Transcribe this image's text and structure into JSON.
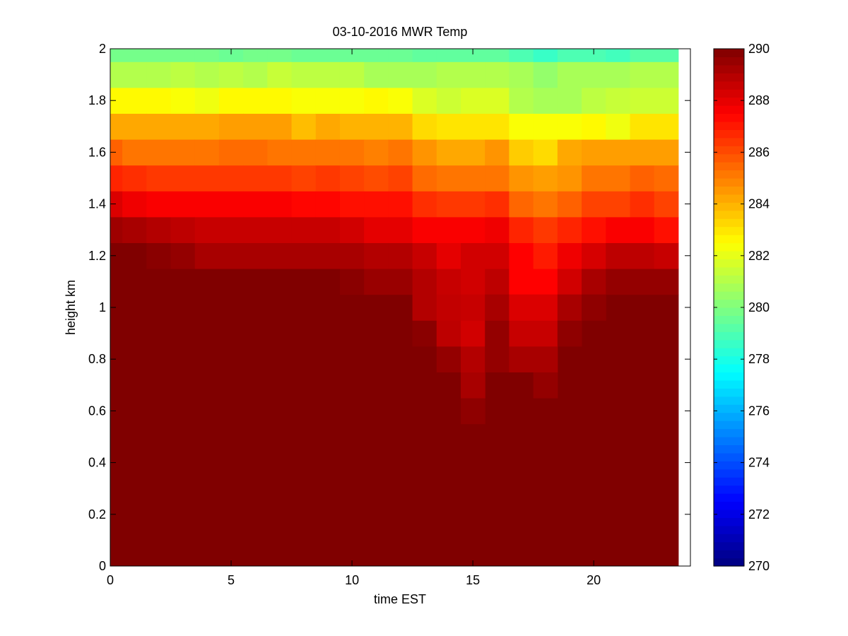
{
  "chart_data": {
    "type": "heatmap",
    "title": "03-10-2016 MWR Temp",
    "xlabel": "time EST",
    "ylabel": "height km",
    "xlim": [
      0,
      24
    ],
    "ylim": [
      0,
      2
    ],
    "xticks": [
      "0",
      "5",
      "10",
      "15",
      "20"
    ],
    "yticks": [
      "0",
      "0.2",
      "0.4",
      "0.6",
      "0.8",
      "1",
      "1.2",
      "1.4",
      "1.6",
      "1.8",
      "2"
    ],
    "colorbar": {
      "colormap": "jet",
      "clim": [
        270,
        290
      ],
      "ticks": [
        "270",
        "272",
        "274",
        "276",
        "278",
        "280",
        "282",
        "284",
        "286",
        "288",
        "290"
      ]
    },
    "x_hours": [
      0,
      1,
      2,
      3,
      4,
      5,
      6,
      7,
      8,
      9,
      10,
      11,
      12,
      13,
      14,
      15,
      16,
      17,
      18,
      19,
      20,
      21,
      22,
      23
    ],
    "height_bins_km": [
      [
        0.0,
        1.05
      ],
      [
        1.05,
        1.15
      ],
      [
        1.15,
        1.25
      ],
      [
        1.25,
        1.35
      ],
      [
        1.35,
        1.45
      ],
      [
        1.45,
        1.55
      ],
      [
        1.55,
        1.65
      ],
      [
        1.65,
        1.75
      ],
      [
        1.75,
        1.85
      ],
      [
        1.85,
        1.95
      ],
      [
        1.95,
        2.0
      ]
    ],
    "low_level_columns": [
      {
        "hour": 13,
        "layers": [
          [
            0.85,
            0.95,
            289.8
          ],
          [
            0.95,
            1.05,
            289.0
          ]
        ]
      },
      {
        "hour": 14,
        "layers": [
          [
            0.75,
            0.85,
            289.6
          ],
          [
            0.85,
            0.95,
            288.8
          ],
          [
            0.95,
            1.05,
            288.7
          ]
        ]
      },
      {
        "hour": 15,
        "layers": [
          [
            0.55,
            0.65,
            289.7
          ],
          [
            0.65,
            0.75,
            289.2
          ],
          [
            0.75,
            0.85,
            289.0
          ],
          [
            0.85,
            0.95,
            288.4
          ],
          [
            0.95,
            1.05,
            288.6
          ]
        ]
      },
      {
        "hour": 16,
        "layers": [
          [
            0.75,
            0.85,
            289.6
          ],
          [
            0.85,
            0.95,
            289.6
          ],
          [
            0.95,
            1.05,
            289.2
          ]
        ]
      },
      {
        "hour": 17,
        "layers": [
          [
            0.75,
            0.85,
            289.2
          ],
          [
            0.85,
            0.95,
            288.6
          ],
          [
            0.95,
            1.05,
            288.2
          ]
        ]
      },
      {
        "hour": 18,
        "layers": [
          [
            0.65,
            0.75,
            289.6
          ],
          [
            0.75,
            0.85,
            289.2
          ],
          [
            0.85,
            0.95,
            288.6
          ],
          [
            0.95,
            1.05,
            288.2
          ]
        ]
      },
      {
        "hour": 19,
        "layers": [
          [
            0.85,
            0.95,
            289.7
          ],
          [
            0.95,
            1.05,
            289.2
          ]
        ]
      },
      {
        "hour": 20,
        "layers": [
          [
            0.95,
            1.05,
            289.7
          ]
        ]
      }
    ],
    "upper_values": [
      [
        290,
        290,
        290,
        290,
        290,
        290,
        290,
        290,
        290,
        290,
        289.8,
        289.5,
        289.5,
        289.0,
        288.6,
        288.4,
        288.8,
        287.5,
        287.5,
        288.4,
        289.2,
        289.6,
        289.6,
        289.6
      ],
      [
        290,
        290,
        289.8,
        289.6,
        289.2,
        289.2,
        289.2,
        289.2,
        289.2,
        289.2,
        289.2,
        289.0,
        289.0,
        288.6,
        288.0,
        288.4,
        288.4,
        287.5,
        287.0,
        287.8,
        288.3,
        288.8,
        288.8,
        288.6
      ],
      [
        289.4,
        289.2,
        289.0,
        288.8,
        288.6,
        288.6,
        288.6,
        288.6,
        288.6,
        288.6,
        288.4,
        288.0,
        288.0,
        287.6,
        287.6,
        287.6,
        287.8,
        286.8,
        286.4,
        286.8,
        287.2,
        287.6,
        287.6,
        287.2
      ],
      [
        288.2,
        287.8,
        287.6,
        287.6,
        287.6,
        287.6,
        287.6,
        287.6,
        287.4,
        287.4,
        287.2,
        287.2,
        287.2,
        286.6,
        286.4,
        286.4,
        286.6,
        285.5,
        285.2,
        285.6,
        286.2,
        286.2,
        286.6,
        286.2
      ],
      [
        286.8,
        286.6,
        286.4,
        286.4,
        286.4,
        286.4,
        286.4,
        286.4,
        286.2,
        286.4,
        286.2,
        286.0,
        286.2,
        285.4,
        285.2,
        285.2,
        285.2,
        284.6,
        284.4,
        284.6,
        285.2,
        285.2,
        285.6,
        285.4
      ],
      [
        285.6,
        285.2,
        285.2,
        285.2,
        285.2,
        285.4,
        285.4,
        285.2,
        285.2,
        285.2,
        285.2,
        285.0,
        285.2,
        284.6,
        284.2,
        284.2,
        284.6,
        283.5,
        283.2,
        284.2,
        284.4,
        284.4,
        284.4,
        284.4
      ],
      [
        284.2,
        284.2,
        284.2,
        284.2,
        284.2,
        284.4,
        284.4,
        284.4,
        283.8,
        284.2,
        284.0,
        284.0,
        284.0,
        283.2,
        283.0,
        283.0,
        283.0,
        282.4,
        282.4,
        282.4,
        282.6,
        282.2,
        283.0,
        283.0
      ],
      [
        282.6,
        282.6,
        282.6,
        282.4,
        282.2,
        282.6,
        282.6,
        282.6,
        282.4,
        282.4,
        282.4,
        282.6,
        282.4,
        281.8,
        281.5,
        281.8,
        281.8,
        281.0,
        280.8,
        280.8,
        281.2,
        281.4,
        281.5,
        281.5
      ],
      [
        281.0,
        281.0,
        281.0,
        281.2,
        281.0,
        281.2,
        281.0,
        281.4,
        281.2,
        281.2,
        281.2,
        280.8,
        280.8,
        280.8,
        281.0,
        281.0,
        281.0,
        280.8,
        280.4,
        280.8,
        280.8,
        280.8,
        281.0,
        281.0
      ],
      [
        279.8,
        279.8,
        279.8,
        279.8,
        279.8,
        279.6,
        279.8,
        279.8,
        279.6,
        279.6,
        279.6,
        279.6,
        279.6,
        279.4,
        279.4,
        279.4,
        279.4,
        279.0,
        278.6,
        279.0,
        279.0,
        278.8,
        279.2,
        279.2
      ]
    ]
  }
}
